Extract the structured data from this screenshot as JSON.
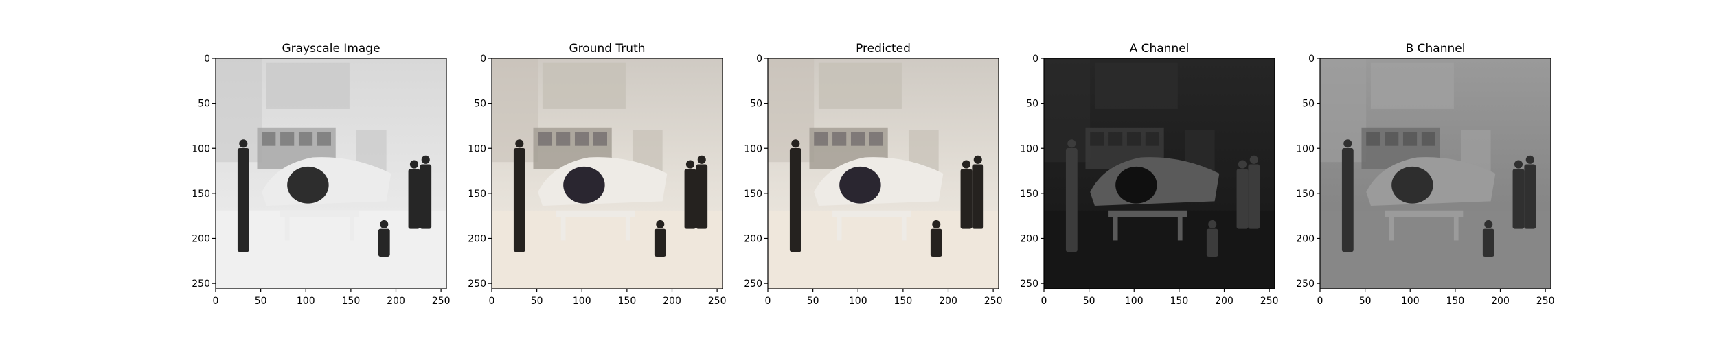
{
  "figure": {
    "panels": [
      {
        "id": "grayscale",
        "title": "Grayscale Image",
        "mode": "gray",
        "tint": "#9a9a9a"
      },
      {
        "id": "ground-truth",
        "title": "Ground Truth",
        "mode": "color",
        "tint": "#b9ad9c"
      },
      {
        "id": "predicted",
        "title": "Predicted",
        "mode": "color",
        "tint": "#c2ad96"
      },
      {
        "id": "a-channel",
        "title": "A Channel",
        "mode": "dark",
        "tint": "#2a2a2a"
      },
      {
        "id": "b-channel",
        "title": "B Channel",
        "mode": "mid",
        "tint": "#8c8c8c"
      }
    ],
    "x_ticks": [
      "0",
      "50",
      "100",
      "150",
      "200",
      "250"
    ],
    "y_ticks": [
      "0",
      "50",
      "100",
      "150",
      "200",
      "250"
    ],
    "x_tick_values": [
      0,
      50,
      100,
      150,
      200,
      250
    ],
    "y_tick_values": [
      0,
      50,
      100,
      150,
      200,
      250
    ],
    "axis_range": [
      0,
      256
    ]
  }
}
